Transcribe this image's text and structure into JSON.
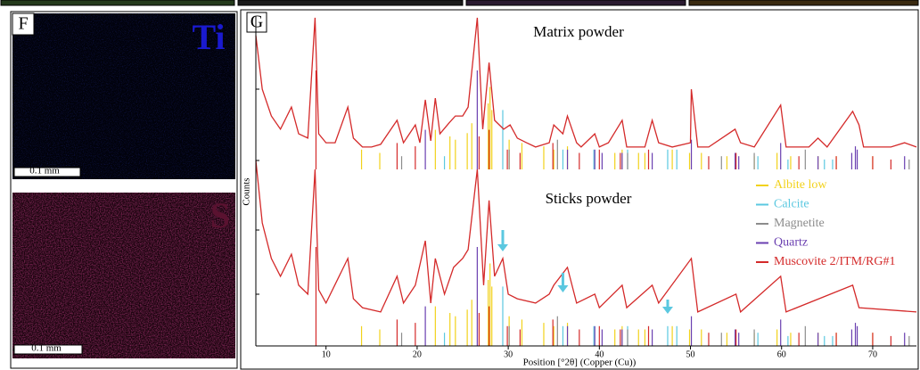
{
  "panels": {
    "f_label": "F",
    "ti_label": "Ti",
    "s_label": "S",
    "ti_scale": "0.1 mm",
    "s_scale": "0.1 mm",
    "g_label": "G"
  },
  "chart_data": {
    "type": "xrd",
    "x_label": "Position [°2θ] (Copper (Cu))",
    "y_label": "Counts",
    "xlim": [
      2.3,
      74.8
    ],
    "xticks": [
      10,
      20,
      30,
      40,
      50,
      60,
      70
    ],
    "ylim": [
      0,
      100
    ],
    "patterns": [
      {
        "name": "Matrix powder",
        "color": "#d42a2a",
        "x": [
          2.3,
          3,
          4,
          5,
          6.2,
          7,
          8,
          8.8,
          9.2,
          10,
          11,
          12.4,
          13,
          14,
          15,
          16,
          17.8,
          18.5,
          19.8,
          20.3,
          20.9,
          21.5,
          22,
          22.5,
          23.5,
          24.2,
          25,
          25.6,
          26.6,
          27.2,
          27.9,
          28.5,
          29.5,
          30.2,
          31,
          32,
          33,
          34.5,
          35,
          36,
          36.5,
          37.5,
          38,
          39.5,
          40,
          41,
          42.5,
          43,
          45,
          45.8,
          46.5,
          48,
          50,
          50.1,
          50.8,
          52,
          54.9,
          55.5,
          57,
          59.9,
          60.5,
          63,
          64,
          65,
          67.8,
          68.5,
          69,
          72,
          73.5,
          74.8
        ],
        "values": [
          94.1,
          77.8,
          69.7,
          65.7,
          72.4,
          64.3,
          63,
          99.5,
          64.3,
          61.6,
          61.6,
          72.4,
          63,
          60.3,
          60.3,
          61.1,
          68.4,
          61.6,
          67,
          61.6,
          74.6,
          62.2,
          75.1,
          64.3,
          67.6,
          69.7,
          69.7,
          72.4,
          99.5,
          65.7,
          85.9,
          68.4,
          65.7,
          67,
          63,
          61.6,
          60.3,
          61.6,
          67,
          64.3,
          69.7,
          61.6,
          60.3,
          64.3,
          60.3,
          61.6,
          68.4,
          60.3,
          60.3,
          68.4,
          61.6,
          60.3,
          61.6,
          77.8,
          60.3,
          60.3,
          65.7,
          61.6,
          60.3,
          73,
          60.3,
          60.3,
          63,
          60.3,
          71.1,
          67,
          60.3,
          60.3,
          61.6,
          60.3
        ]
      },
      {
        "name": "Sticks powder",
        "color": "#d42a2a",
        "x": [
          2.3,
          3,
          4,
          5,
          6.2,
          7,
          8,
          8.8,
          9.2,
          10,
          12.4,
          13,
          14,
          16,
          17.8,
          18.5,
          19.8,
          20.9,
          21.5,
          22,
          23,
          24,
          25,
          25.6,
          26.6,
          27.3,
          27.9,
          28.5,
          29.4,
          30,
          31,
          33,
          34.5,
          35,
          36.5,
          37.5,
          39.5,
          40,
          42.5,
          43,
          45.8,
          46.5,
          50.1,
          50.8,
          55,
          55.5,
          59.9,
          60.5,
          67.8,
          68.5,
          74.8
        ],
        "values": [
          56.2,
          37.3,
          26.5,
          21.1,
          27.8,
          18.4,
          15.7,
          53.5,
          17,
          13,
          26.5,
          14.3,
          11.6,
          10.3,
          21.1,
          13,
          18.4,
          31.9,
          13,
          26.5,
          15.7,
          23.8,
          26.5,
          29.2,
          53.5,
          18.4,
          44.1,
          21.1,
          26.5,
          15.7,
          14.3,
          13,
          15.7,
          18.4,
          23.8,
          13,
          15.7,
          11.6,
          18.4,
          11.6,
          18.4,
          13,
          26.5,
          10.3,
          15.7,
          10.3,
          21.1,
          10.3,
          18.4,
          11.6,
          10.3
        ]
      }
    ],
    "series": [
      {
        "name": "Albite low",
        "color": "#f2d21b",
        "x": [
          13.9,
          15.9,
          22,
          23.6,
          24.2,
          25.5,
          26,
          27.8,
          28,
          28.2,
          30.1,
          31.5,
          33.9,
          35,
          36.5,
          41.7,
          42.5,
          44.3,
          45,
          48,
          49.9,
          51.2,
          54,
          57,
          59.5,
          61,
          64,
          66,
          70
        ],
        "values": [
          6,
          5,
          12,
          10,
          9,
          11,
          14,
          20,
          25,
          18,
          9,
          8,
          7,
          6,
          7,
          5,
          6,
          5,
          5,
          6,
          5,
          5,
          4,
          4,
          5,
          4,
          4,
          4,
          4
        ]
      },
      {
        "name": "Calcite",
        "color": "#5bc8e0",
        "x": [
          23,
          29.4,
          36,
          39.4,
          43.1,
          47.5,
          48.5,
          57.4,
          60.7,
          64.7,
          65.6
        ],
        "values": [
          4,
          18,
          6,
          6,
          6,
          6,
          6,
          4,
          3,
          3,
          3
        ]
      },
      {
        "name": "Magnetite",
        "color": "#8c8c8c",
        "x": [
          18.3,
          30.1,
          35.4,
          43.1,
          53.4,
          57,
          62.6,
          74
        ],
        "values": [
          4,
          6,
          9,
          5,
          4,
          5,
          6,
          3
        ]
      },
      {
        "name": "Quartz",
        "color": "#6a3fb0",
        "x": [
          20.9,
          26.6,
          36.5,
          39.5,
          40.3,
          42.5,
          45.8,
          50.1,
          54.9,
          55.3,
          59.9,
          64,
          67.7,
          68.1,
          68.3,
          73.5
        ],
        "values": [
          12,
          30,
          6,
          6,
          5,
          5,
          5,
          9,
          5,
          4,
          8,
          4,
          5,
          7,
          6,
          4
        ]
      },
      {
        "name": "Muscovite 2/ITM/RG#1",
        "color": "#d42a2a",
        "x": [
          8.9,
          17.8,
          19.8,
          26.8,
          27.9,
          29.9,
          31.3,
          34.9,
          37.8,
          40,
          42.3,
          45.4,
          52,
          55,
          61.9,
          66,
          70,
          72
        ],
        "values": [
          30,
          8,
          7,
          10,
          12,
          6,
          5,
          8,
          5,
          6,
          5,
          6,
          4,
          5,
          4,
          4,
          4,
          3
        ]
      }
    ],
    "arrows": [
      29.4,
      36,
      47.5
    ]
  }
}
